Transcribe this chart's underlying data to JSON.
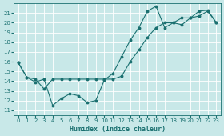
{
  "xlabel": "Humidex (Indice chaleur)",
  "background_color": "#c8e8e8",
  "grid_color": "#ffffff",
  "line_color": "#1a7070",
  "xlim": [
    -0.5,
    23.5
  ],
  "ylim": [
    10.5,
    22.0
  ],
  "yticks": [
    11,
    12,
    13,
    14,
    15,
    16,
    17,
    18,
    19,
    20,
    21
  ],
  "xticks": [
    0,
    1,
    2,
    3,
    4,
    5,
    6,
    7,
    8,
    9,
    10,
    11,
    12,
    13,
    14,
    15,
    16,
    17,
    18,
    19,
    20,
    21,
    22,
    23
  ],
  "curve1_x": [
    0,
    1,
    2,
    3,
    4,
    5,
    6,
    7,
    8,
    9,
    10,
    11,
    12,
    13,
    14,
    15,
    16,
    17,
    18,
    19,
    20,
    21,
    22,
    23
  ],
  "curve1_y": [
    15.9,
    14.4,
    13.9,
    14.2,
    11.5,
    12.2,
    12.7,
    12.5,
    11.8,
    12.0,
    14.1,
    14.8,
    16.5,
    18.2,
    19.5,
    21.2,
    21.7,
    19.5,
    20.0,
    19.8,
    20.5,
    21.2,
    21.3,
    20.0
  ],
  "curve2_x": [
    0,
    1,
    2,
    3,
    4,
    5,
    6,
    7,
    8,
    9,
    10,
    11,
    12,
    13,
    14,
    15,
    16,
    17,
    18,
    19,
    20,
    21,
    22,
    23
  ],
  "curve2_y": [
    15.9,
    14.4,
    14.2,
    13.2,
    14.2,
    14.2,
    14.2,
    14.2,
    14.2,
    14.2,
    14.2,
    14.2,
    14.5,
    16.0,
    17.2,
    18.5,
    19.5,
    20.0,
    20.0,
    20.5,
    20.5,
    20.7,
    21.2,
    20.0
  ],
  "xlabel_fontsize": 6.0,
  "tick_fontsize": 5.0,
  "linewidth": 0.8,
  "markersize": 1.8
}
